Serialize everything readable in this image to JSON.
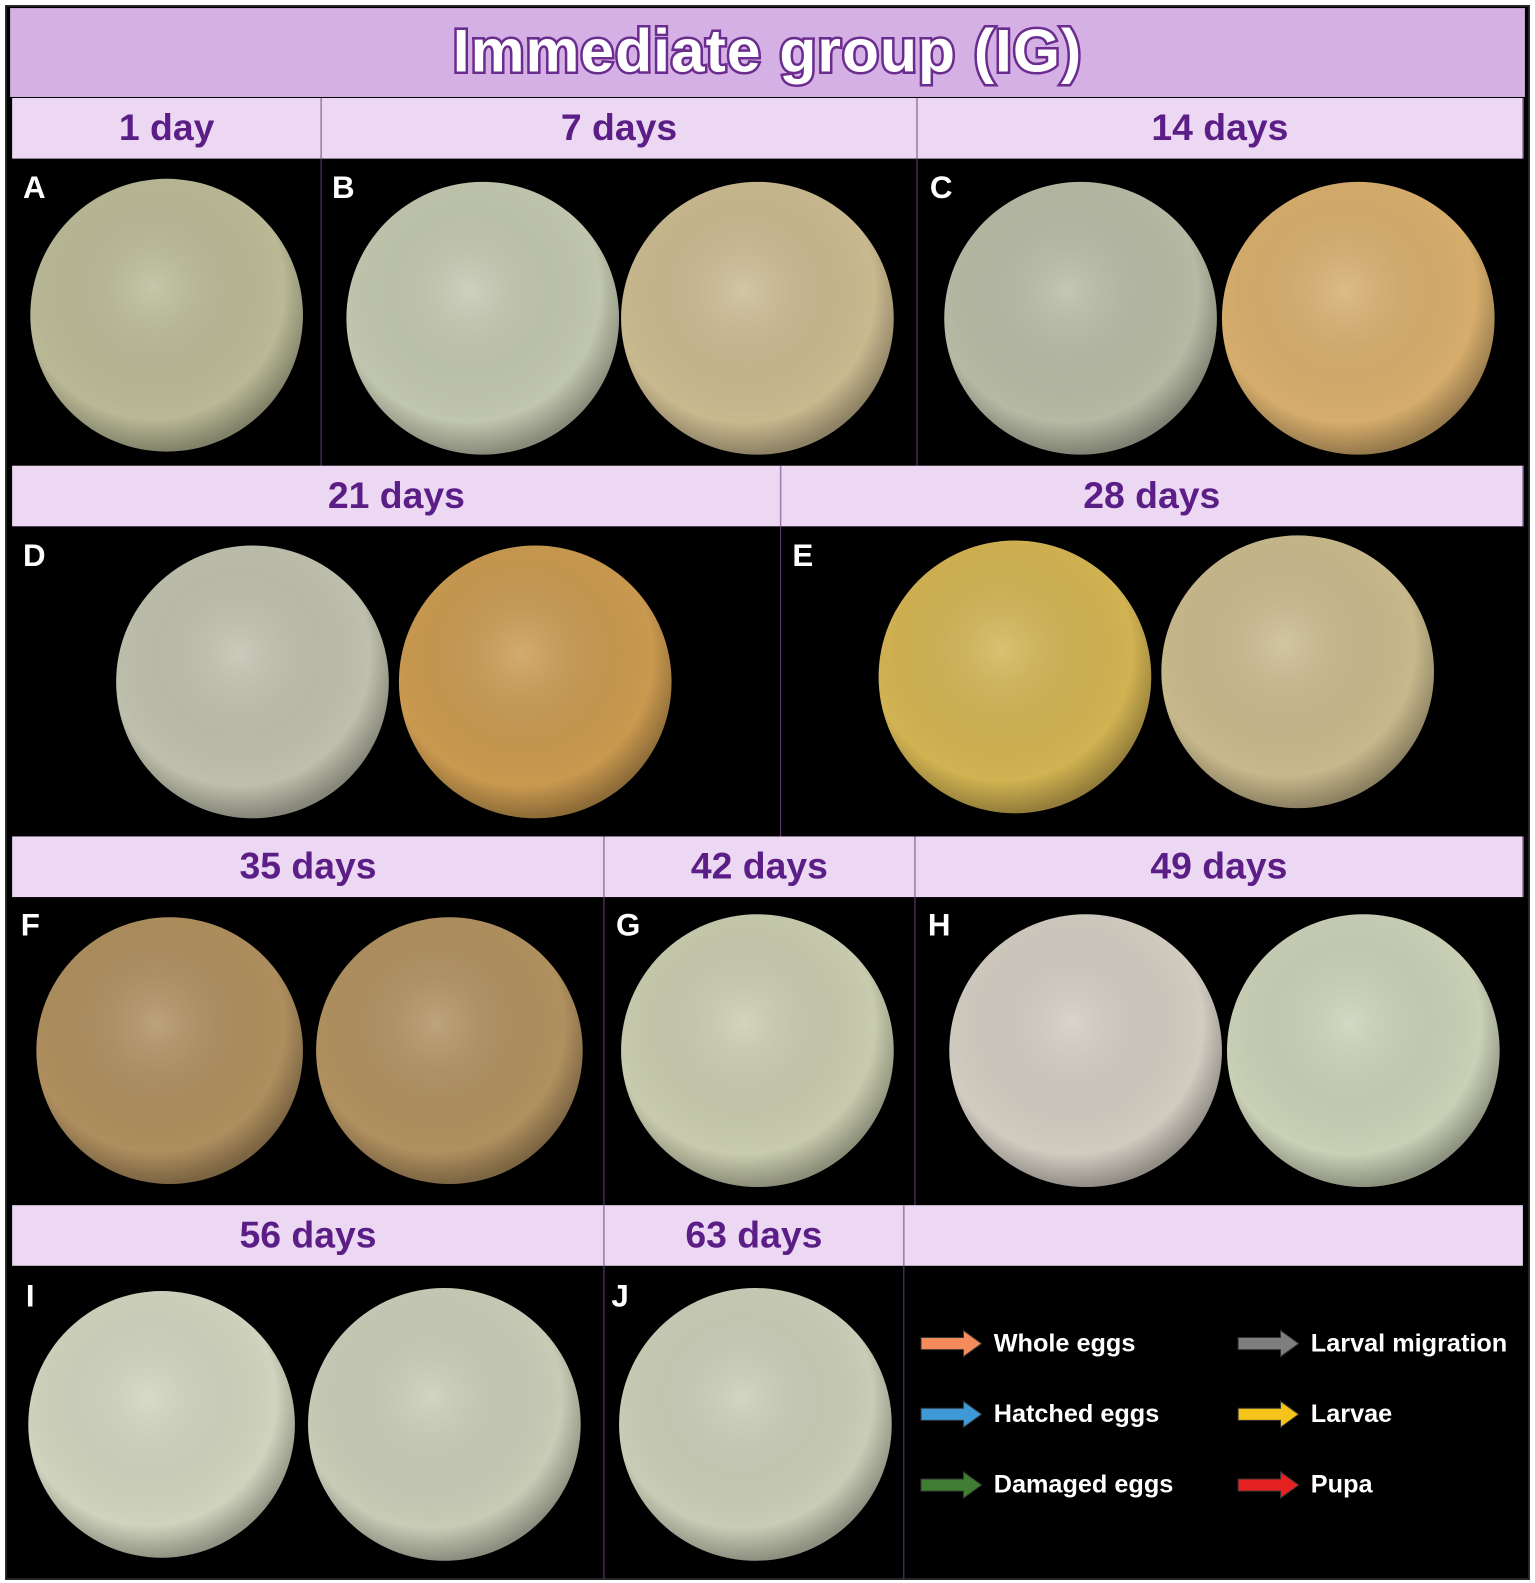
{
  "title": "Immediate group (IG)",
  "rows": [
    {
      "headers": [
        "1 day",
        "7 days",
        "14 days"
      ],
      "panels": [
        "A",
        "B",
        "C"
      ]
    },
    {
      "headers": [
        "21 days",
        "28 days"
      ],
      "panels": [
        "D",
        "E"
      ]
    },
    {
      "headers": [
        "35 days",
        "42 days",
        "49 days"
      ],
      "panels": [
        "F",
        "G",
        "H"
      ]
    },
    {
      "headers": [
        "56 days",
        "63 days"
      ],
      "panels": [
        "I",
        "J"
      ]
    }
  ],
  "legend": [
    {
      "label": "Whole eggs",
      "color": "#f48b5c"
    },
    {
      "label": "Hatched eggs",
      "color": "#3d9ad6"
    },
    {
      "label": "Damaged eggs",
      "color": "#3f7d32"
    },
    {
      "label": "Larval migration",
      "color": "#7e7e7e"
    },
    {
      "label": "Larvae",
      "color": "#f4c41a"
    },
    {
      "label": "Pupa",
      "color": "#e62121"
    }
  ]
}
